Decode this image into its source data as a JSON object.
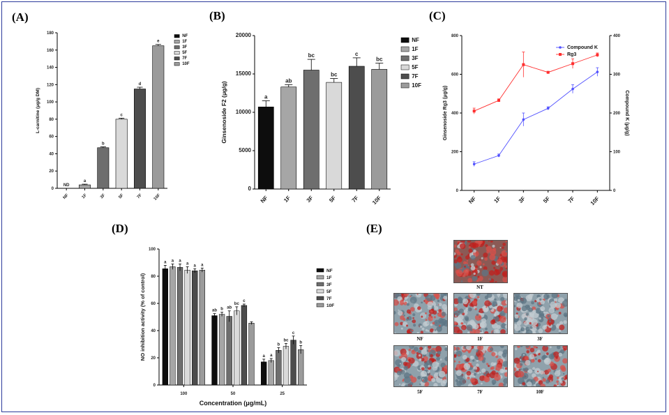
{
  "panels": {
    "A": {
      "label": "(A)"
    },
    "B": {
      "label": "(B)"
    },
    "C": {
      "label": "(C)"
    },
    "D": {
      "label": "(D)"
    },
    "E": {
      "label": "(E)"
    }
  },
  "colors": {
    "NF": "#0d0d0d",
    "1F": "#a6a6a6",
    "3F": "#6e6e6e",
    "5F": "#d9d9d9",
    "7F": "#4d4d4d",
    "10F": "#9b9b9b",
    "compound_k": "#5050ff",
    "rg3": "#ff2f2f",
    "frame": "#2b3a9a"
  },
  "chart_data": [
    {
      "id": "A",
      "type": "bar",
      "categories": [
        "NF",
        "1F",
        "3F",
        "5F",
        "7F",
        "10F"
      ],
      "values": [
        0,
        4,
        47,
        80,
        115,
        165
      ],
      "errors": [
        0,
        0.8,
        1,
        1.2,
        2,
        1.5
      ],
      "letters": [
        "ND",
        "a",
        "b",
        "c",
        "d",
        "e"
      ],
      "ylabel": "L-carnitine (μg/g DM)",
      "ylim": [
        0,
        180
      ],
      "yticks": [
        "0",
        "20",
        "40",
        "60",
        "80",
        "100",
        "120",
        "140",
        "160",
        "180"
      ],
      "legend": [
        "NF",
        "1F",
        "3F",
        "5F",
        "7F",
        "10F"
      ]
    },
    {
      "id": "B",
      "type": "bar",
      "categories": [
        "NF",
        "1F",
        "3F",
        "5F",
        "7F",
        "10F"
      ],
      "values": [
        10700,
        13300,
        15500,
        13900,
        16000,
        15600
      ],
      "errors": [
        800,
        300,
        1400,
        500,
        1100,
        800
      ],
      "letters": [
        "a",
        "ab",
        "bc",
        "bc",
        "c",
        "bc"
      ],
      "ylabel": "Ginsenoside F2 (μg/g)",
      "ylim": [
        0,
        20000
      ],
      "yticks": [
        "0",
        "5000",
        "10000",
        "15000",
        "20000"
      ],
      "legend": [
        "NF",
        "1F",
        "3F",
        "5F",
        "7F",
        "10F"
      ]
    },
    {
      "id": "C",
      "type": "line",
      "categories": [
        "NF",
        "1F",
        "3F",
        "5F",
        "7F",
        "10F"
      ],
      "series": [
        {
          "name": "Compound K",
          "axis": "right",
          "values": [
            68,
            90,
            183,
            212,
            262,
            306
          ],
          "errors": [
            6,
            4,
            17,
            4,
            11,
            11
          ]
        },
        {
          "name": "Rg3",
          "axis": "left",
          "values": [
            410,
            465,
            650,
            610,
            655,
            700
          ],
          "errors": [
            15,
            8,
            65,
            5,
            25,
            10
          ]
        }
      ],
      "ylabel_left": "Ginsenoside Rg3 (μg/g)",
      "ylabel_right": "Compound K (μg/g)",
      "ylim_left": [
        0,
        800
      ],
      "ylim_right": [
        0,
        400
      ],
      "yticks_left": [
        "0",
        "200",
        "400",
        "600",
        "800"
      ],
      "yticks_right": [
        "0",
        "100",
        "200",
        "300",
        "400"
      ],
      "legend_position": "top-right"
    },
    {
      "id": "D",
      "type": "bar",
      "groups": [
        "100",
        "50",
        "25"
      ],
      "series": [
        {
          "name": "NF",
          "values": [
            85.5,
            51,
            17
          ],
          "errors": [
            2.5,
            1.5,
            2
          ]
        },
        {
          "name": "1F",
          "values": [
            87,
            52,
            18
          ],
          "errors": [
            2,
            1.5,
            1.5
          ]
        },
        {
          "name": "3F",
          "values": [
            86.5,
            50.5,
            25.5
          ],
          "errors": [
            2.5,
            4,
            2
          ]
        },
        {
          "name": "5F",
          "values": [
            84.5,
            54.5,
            28.5
          ],
          "errors": [
            2.5,
            3,
            2
          ]
        },
        {
          "name": "7F",
          "values": [
            84,
            58.5,
            33
          ],
          "errors": [
            1.5,
            1,
            3
          ]
        },
        {
          "name": "10F",
          "values": [
            84.5,
            45.5,
            26
          ],
          "errors": [
            1.5,
            1,
            3
          ]
        }
      ],
      "letters": [
        [
          "a",
          "a",
          "a",
          "a",
          "a",
          "a"
        ],
        [
          "ab",
          "b",
          "ab",
          "bc",
          "c",
          ""
        ],
        [
          "a",
          "a",
          "b",
          "bc",
          "c",
          "b"
        ]
      ],
      "xlabel": "Concentration (μg/mL)",
      "ylabel": "NO inhibition activity  (% of control)",
      "ylim": [
        0,
        100
      ],
      "yticks": [
        "0",
        "20",
        "40",
        "60",
        "80",
        "100"
      ],
      "legend": [
        "NF",
        "1F",
        "3F",
        "5F",
        "7F",
        "10F"
      ]
    }
  ],
  "micrographs": {
    "top": "NT",
    "row1": [
      "NF",
      "1F",
      "3F"
    ],
    "row2": [
      "5F",
      "7F",
      "10F"
    ]
  }
}
